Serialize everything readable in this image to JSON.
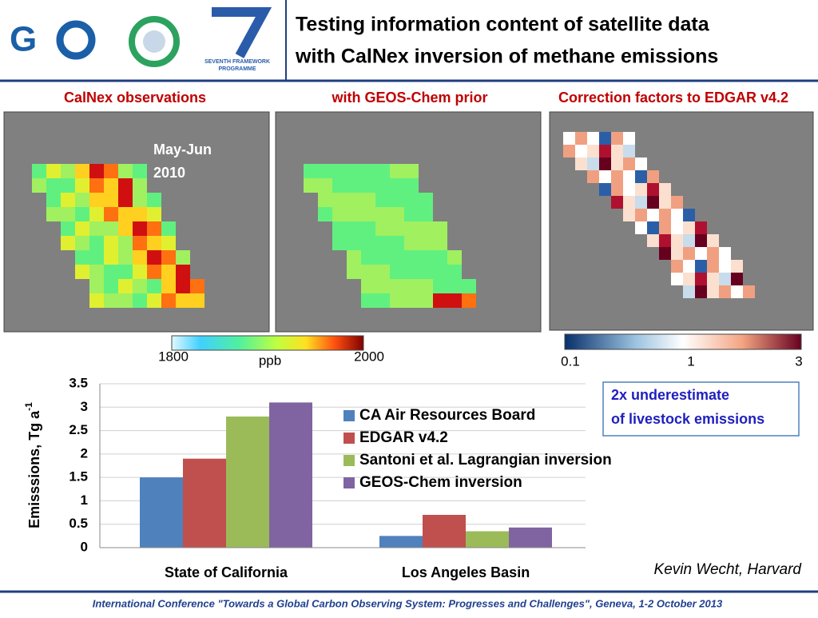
{
  "header": {
    "title_lines": [
      "Testing information content of satellite data",
      "with CalNex inversion of methane emissions"
    ],
    "logo_text": [
      "SEVENTH FRAMEWORK",
      "PROGRAMME"
    ]
  },
  "panels": [
    {
      "title": "CalNex observations",
      "annotation_lines": [
        "May-Jun",
        "2010"
      ]
    },
    {
      "title": "with GEOS-Chem prior"
    },
    {
      "title": "Correction factors to EDGAR v4.2"
    }
  ],
  "colorbars": [
    {
      "min_label": 1800,
      "unit": "ppb",
      "max_label": 2000
    },
    {
      "labels": [
        0.1,
        1,
        3
      ]
    }
  ],
  "chart_data": {
    "type": "bar",
    "y_label": "Emisssions, Tg a",
    "y_label_superscript": "-1",
    "categories": [
      "State of California",
      "Los Angeles Basin"
    ],
    "series": [
      {
        "name": "CA Air Resources Board",
        "color": "#4f81bd",
        "values": [
          1.5,
          0.25
        ]
      },
      {
        "name": "EDGAR v4.2",
        "color": "#c0504d",
        "values": [
          1.9,
          0.7
        ]
      },
      {
        "name": "Santoni et al. Lagrangian inversion",
        "color": "#9bbb59",
        "values": [
          2.8,
          0.35
        ]
      },
      {
        "name": "GEOS-Chem inversion",
        "color": "#8064a2",
        "values": [
          3.1,
          0.43
        ]
      }
    ],
    "ylim": [
      0,
      3.5
    ],
    "yticks": [
      0,
      0.5,
      1,
      1.5,
      2,
      2.5,
      3,
      3.5
    ],
    "grid": true
  },
  "callout_lines": [
    "2x underestimate",
    "of livestock emissions"
  ],
  "credit": "Kevin Wecht, Harvard",
  "footer": "International Conference \"Towards a Global Carbon Observing System: Progresses and Challenges\", Geneva, 1-2 October 2013"
}
